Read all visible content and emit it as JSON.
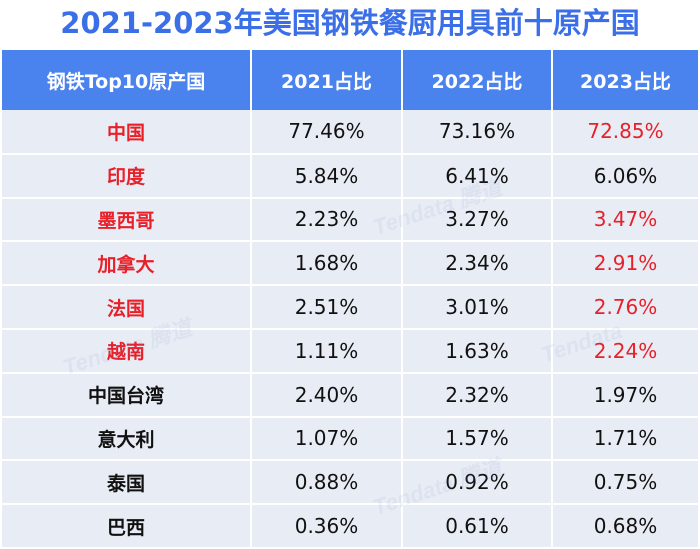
{
  "title": "2021-2023年美国钢铁餐厨用具前十原产国",
  "table": {
    "headers": [
      "钢铁Top10原产国",
      "2021占比",
      "2022占比",
      "2023占比"
    ],
    "rows": [
      {
        "origin": "中国",
        "y2021": "77.46%",
        "y2022": "73.16%",
        "y2023": "72.85%",
        "origin_red": true,
        "y2023_red": true
      },
      {
        "origin": "印度",
        "y2021": "5.84%",
        "y2022": "6.41%",
        "y2023": "6.06%",
        "origin_red": true,
        "y2023_red": false
      },
      {
        "origin": "墨西哥",
        "y2021": "2.23%",
        "y2022": "3.27%",
        "y2023": "3.47%",
        "origin_red": true,
        "y2023_red": true
      },
      {
        "origin": "加拿大",
        "y2021": "1.68%",
        "y2022": "2.34%",
        "y2023": "2.91%",
        "origin_red": true,
        "y2023_red": true
      },
      {
        "origin": "法国",
        "y2021": "2.51%",
        "y2022": "3.01%",
        "y2023": "2.76%",
        "origin_red": true,
        "y2023_red": true
      },
      {
        "origin": "越南",
        "y2021": "1.11%",
        "y2022": "1.63%",
        "y2023": "2.24%",
        "origin_red": true,
        "y2023_red": true
      },
      {
        "origin": "中国台湾",
        "y2021": "2.40%",
        "y2022": "2.32%",
        "y2023": "1.97%",
        "origin_red": false,
        "y2023_red": false
      },
      {
        "origin": "意大利",
        "y2021": "1.07%",
        "y2022": "1.57%",
        "y2023": "1.71%",
        "origin_red": false,
        "y2023_red": false
      },
      {
        "origin": "泰国",
        "y2021": "0.88%",
        "y2022": "0.92%",
        "y2023": "0.75%",
        "origin_red": false,
        "y2023_red": false
      },
      {
        "origin": "巴西",
        "y2021": "0.36%",
        "y2022": "0.61%",
        "y2023": "0.68%",
        "origin_red": false,
        "y2023_red": false
      }
    ]
  },
  "colors": {
    "title": "#3a6fe8",
    "header_bg": "#4a82ee",
    "row_bg": "#e8ecf4",
    "highlight": "#e8202a",
    "text": "#111111"
  },
  "watermark": "Tendata 腾道"
}
